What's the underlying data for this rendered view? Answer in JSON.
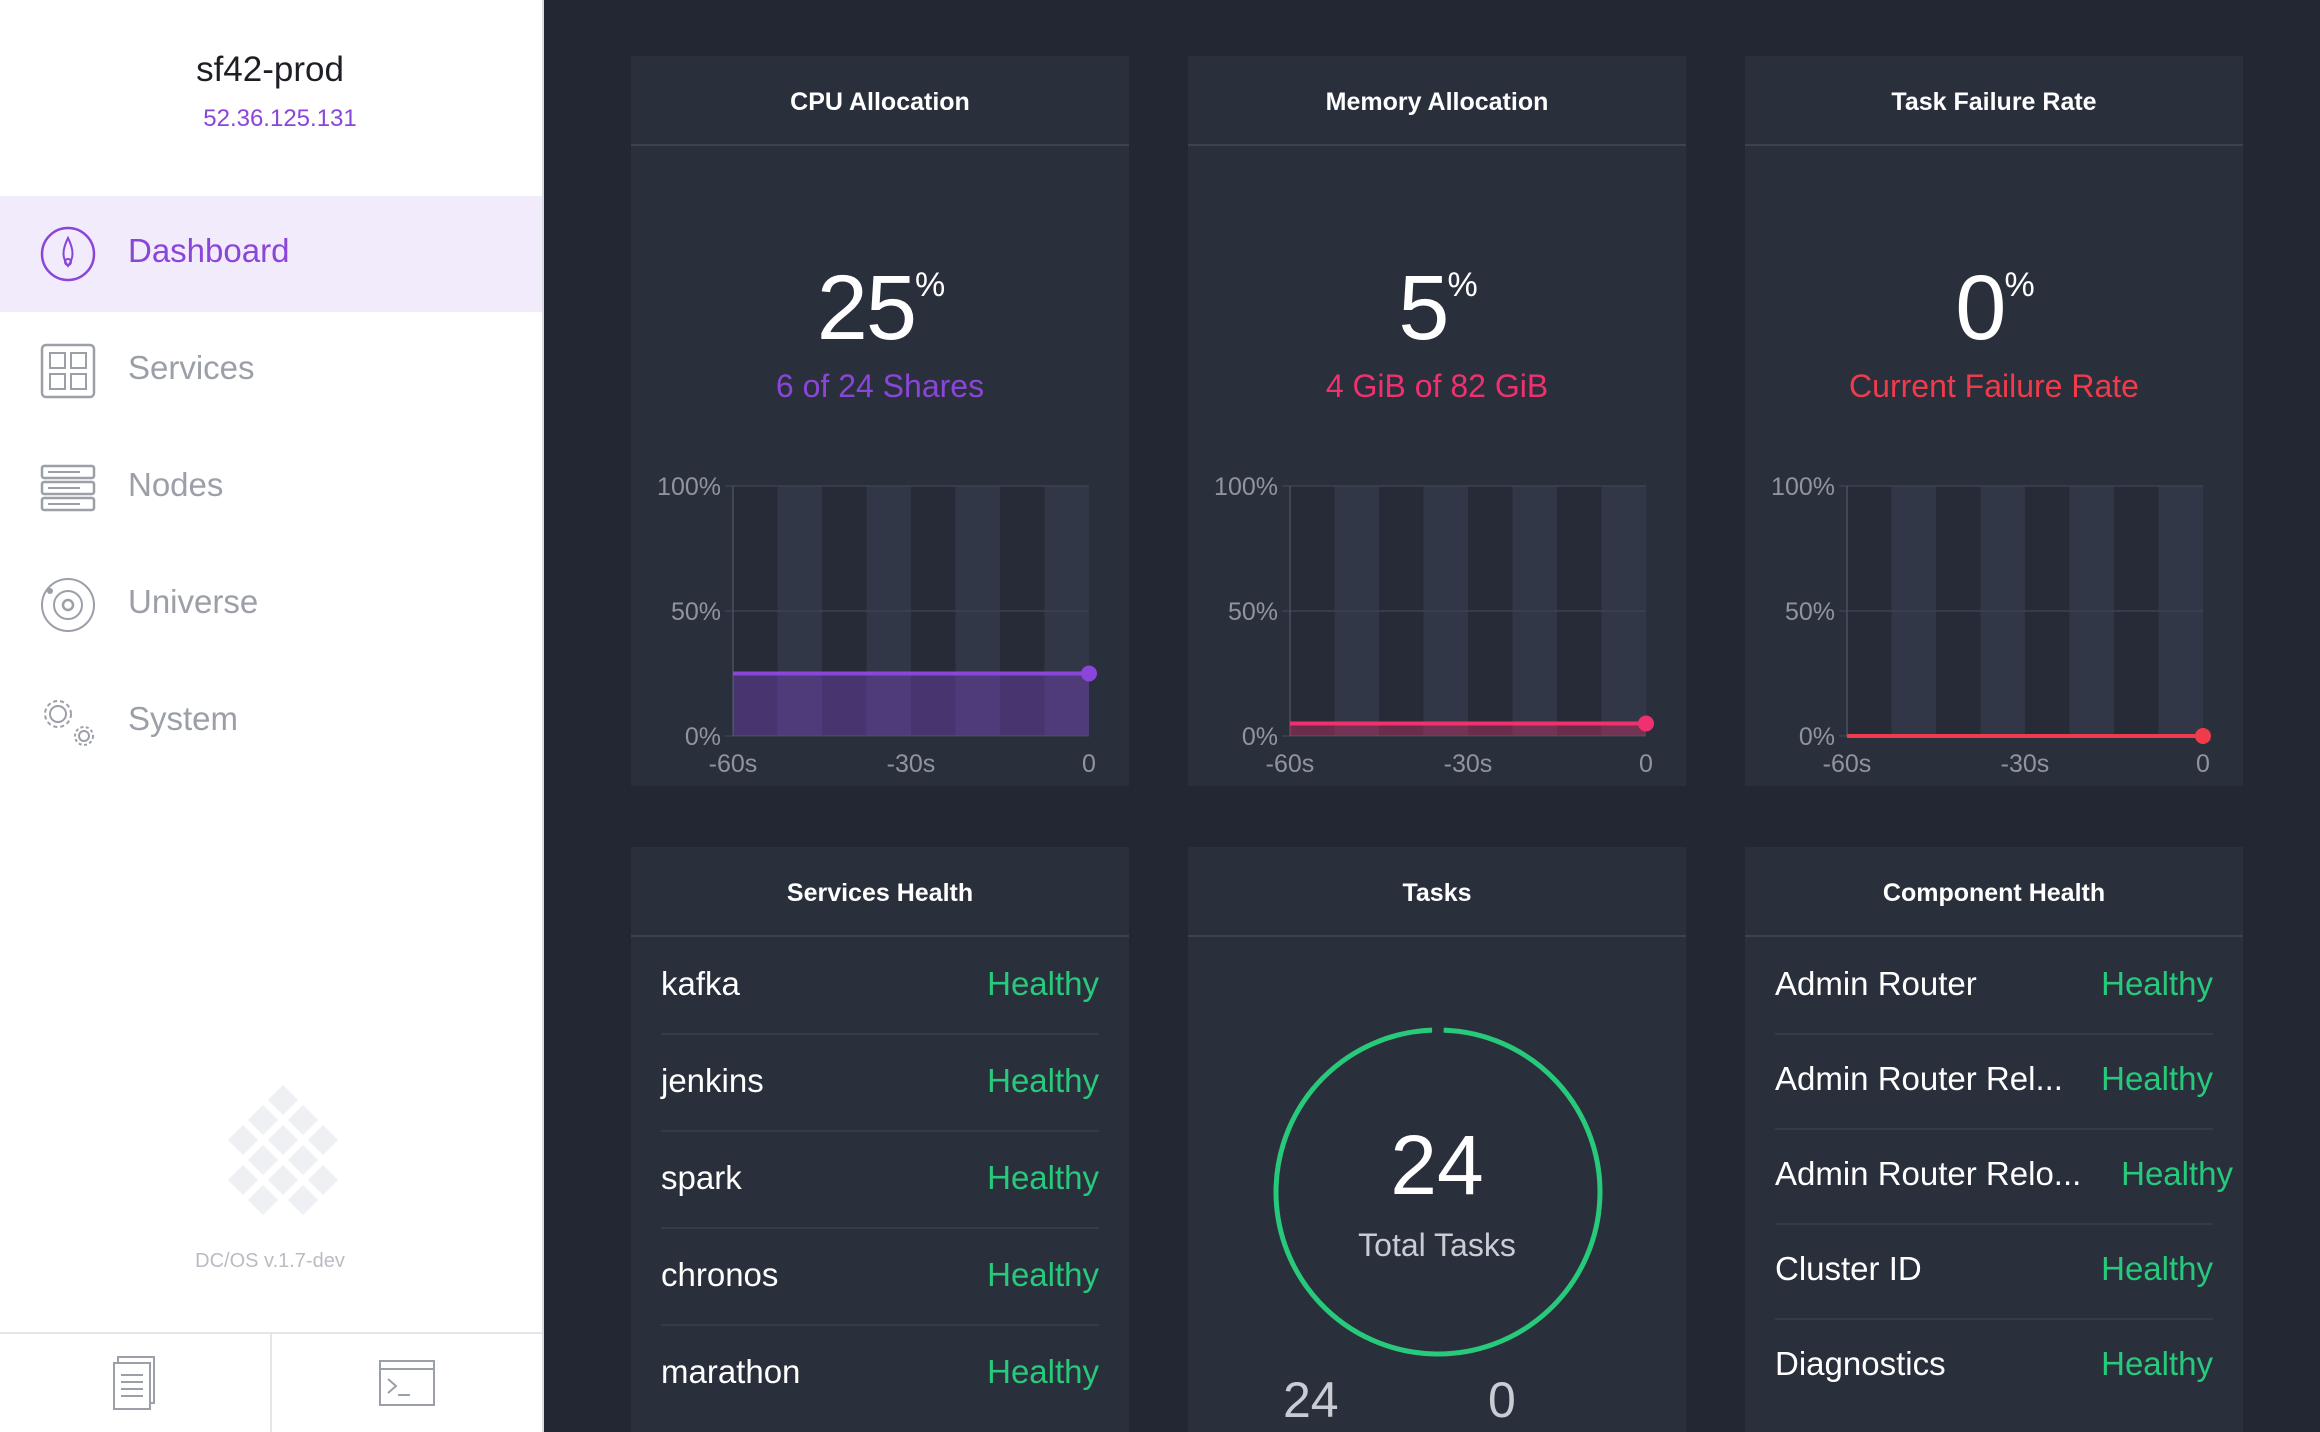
{
  "sidebar": {
    "cluster_name": "sf42-prod",
    "cluster_ip": "52.36.125.131",
    "nav": [
      {
        "label": "Dashboard",
        "icon": "dashboard-icon",
        "active": true
      },
      {
        "label": "Services",
        "icon": "services-icon",
        "active": false
      },
      {
        "label": "Nodes",
        "icon": "nodes-icon",
        "active": false
      },
      {
        "label": "Universe",
        "icon": "universe-icon",
        "active": false
      },
      {
        "label": "System",
        "icon": "system-icon",
        "active": false
      }
    ],
    "version": "DC/OS v.1.7-dev",
    "footer": {
      "left_icon": "docs-icon",
      "right_icon": "terminal-icon"
    }
  },
  "colors": {
    "accent": "#8a45d9",
    "memory": "#f0306f",
    "failure": "#ef3b4b",
    "healthy": "#27c97b",
    "background": "#222733",
    "panel": "#2a2f3c"
  },
  "cpu": {
    "title": "CPU Allocation",
    "value": "25",
    "unit": "%",
    "subtitle": "6 of 24 Shares"
  },
  "memory": {
    "title": "Memory Allocation",
    "value": "5",
    "unit": "%",
    "subtitle": "4 GiB of 82 GiB"
  },
  "failure": {
    "title": "Task Failure Rate",
    "value": "0",
    "unit": "%",
    "subtitle": "Current Failure Rate"
  },
  "chart_data": [
    {
      "type": "area",
      "title": "CPU Allocation",
      "x": [
        -60,
        0
      ],
      "x_tick_labels": [
        "-60s",
        "-30s",
        "0"
      ],
      "y_tick_labels": [
        "100%",
        "50%",
        "0%"
      ],
      "ylim": [
        0,
        100
      ],
      "values": [
        25,
        25
      ],
      "color": "#8a45d9"
    },
    {
      "type": "area",
      "title": "Memory Allocation",
      "x": [
        -60,
        0
      ],
      "x_tick_labels": [
        "-60s",
        "-30s",
        "0"
      ],
      "y_tick_labels": [
        "100%",
        "50%",
        "0%"
      ],
      "ylim": [
        0,
        100
      ],
      "values": [
        5,
        5
      ],
      "color": "#f0306f"
    },
    {
      "type": "area",
      "title": "Task Failure Rate",
      "x": [
        -60,
        0
      ],
      "x_tick_labels": [
        "-60s",
        "-30s",
        "0"
      ],
      "y_tick_labels": [
        "100%",
        "50%",
        "0%"
      ],
      "ylim": [
        0,
        100
      ],
      "values": [
        0,
        0
      ],
      "color": "#ef3b4b"
    }
  ],
  "services_health": {
    "title": "Services Health",
    "rows": [
      {
        "name": "kafka",
        "status": "Healthy"
      },
      {
        "name": "jenkins",
        "status": "Healthy"
      },
      {
        "name": "spark",
        "status": "Healthy"
      },
      {
        "name": "chronos",
        "status": "Healthy"
      },
      {
        "name": "marathon",
        "status": "Healthy"
      }
    ]
  },
  "tasks": {
    "title": "Tasks",
    "total": "24",
    "label": "Total Tasks",
    "healthy_count": "24",
    "other_count": "0",
    "healthy_fraction": 1.0
  },
  "component_health": {
    "title": "Component Health",
    "rows": [
      {
        "name": "Admin Router",
        "status": "Healthy"
      },
      {
        "name": "Admin Router Rel...",
        "status": "Healthy"
      },
      {
        "name": "Admin Router Relo...",
        "status": "Healthy"
      },
      {
        "name": "Cluster ID",
        "status": "Healthy"
      },
      {
        "name": "Diagnostics",
        "status": "Healthy"
      }
    ]
  }
}
